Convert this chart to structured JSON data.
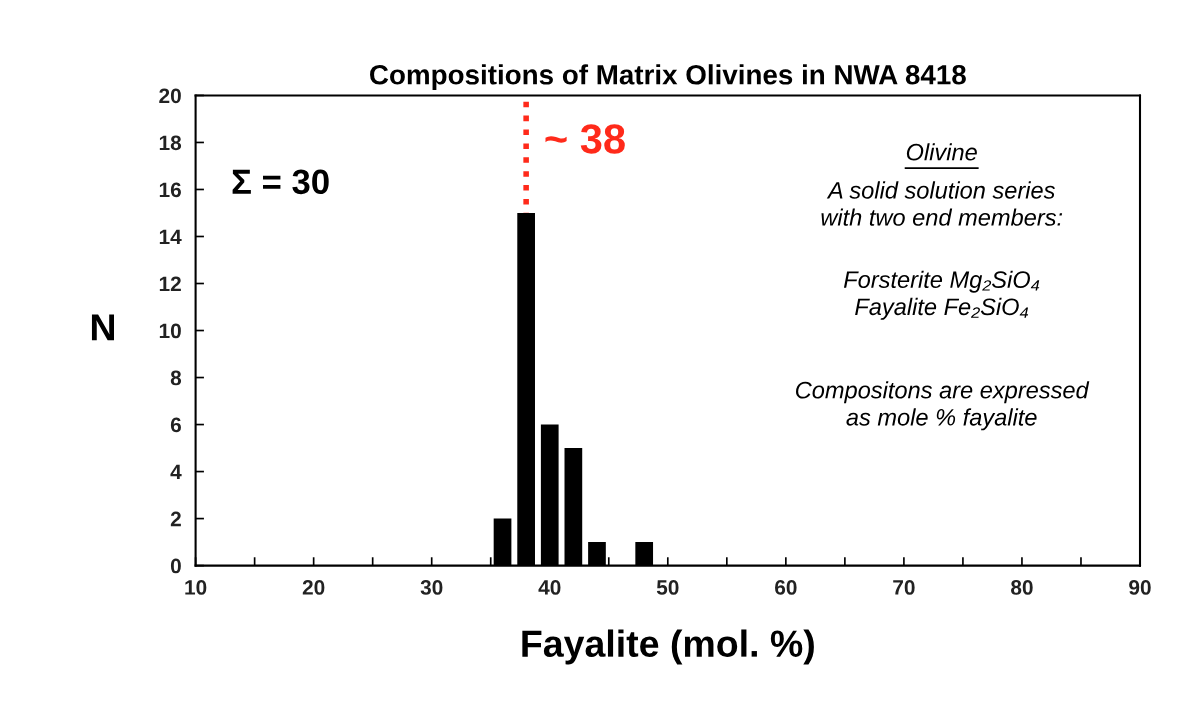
{
  "chart_data": {
    "type": "bar",
    "title": "Compositions of Matrix Olivines in NWA 8418",
    "xlabel": "Fayalite (mol. %)",
    "ylabel": "N",
    "x": [
      36,
      38,
      40,
      42,
      44,
      48
    ],
    "values": [
      2,
      15,
      6,
      5,
      1,
      1
    ],
    "color": "#000000",
    "xlim": [
      10,
      90
    ],
    "xticks": [
      10,
      {
        "value": 15,
        "label": null
      },
      20,
      {
        "value": 25,
        "label": null
      },
      30,
      {
        "value": 35,
        "label": null
      },
      40,
      {
        "value": 45,
        "label": null
      },
      50,
      {
        "value": 55,
        "label": null
      },
      60,
      {
        "value": 65,
        "label": null
      },
      70,
      {
        "value": 75,
        "label": null
      },
      80,
      {
        "value": 85,
        "label": null
      },
      90
    ],
    "ylim": [
      0,
      20
    ],
    "yticks": [
      0,
      2,
      4,
      6,
      8,
      10,
      12,
      14,
      16,
      18,
      20
    ],
    "grid": false,
    "ref_lines": [
      {
        "axis": "x",
        "value": 38,
        "label": "~ 38",
        "color": "#ff2a1a",
        "line_style": "dotted"
      }
    ],
    "annotations": [
      "Σ = 30",
      "Olivine",
      "A solid solution series\nwith two end members:",
      "Forsterite Mg₂SiO₄\nFayalite Fe₂SiO₄",
      "Compositons are expressed\nas mole % fayalite"
    ]
  }
}
